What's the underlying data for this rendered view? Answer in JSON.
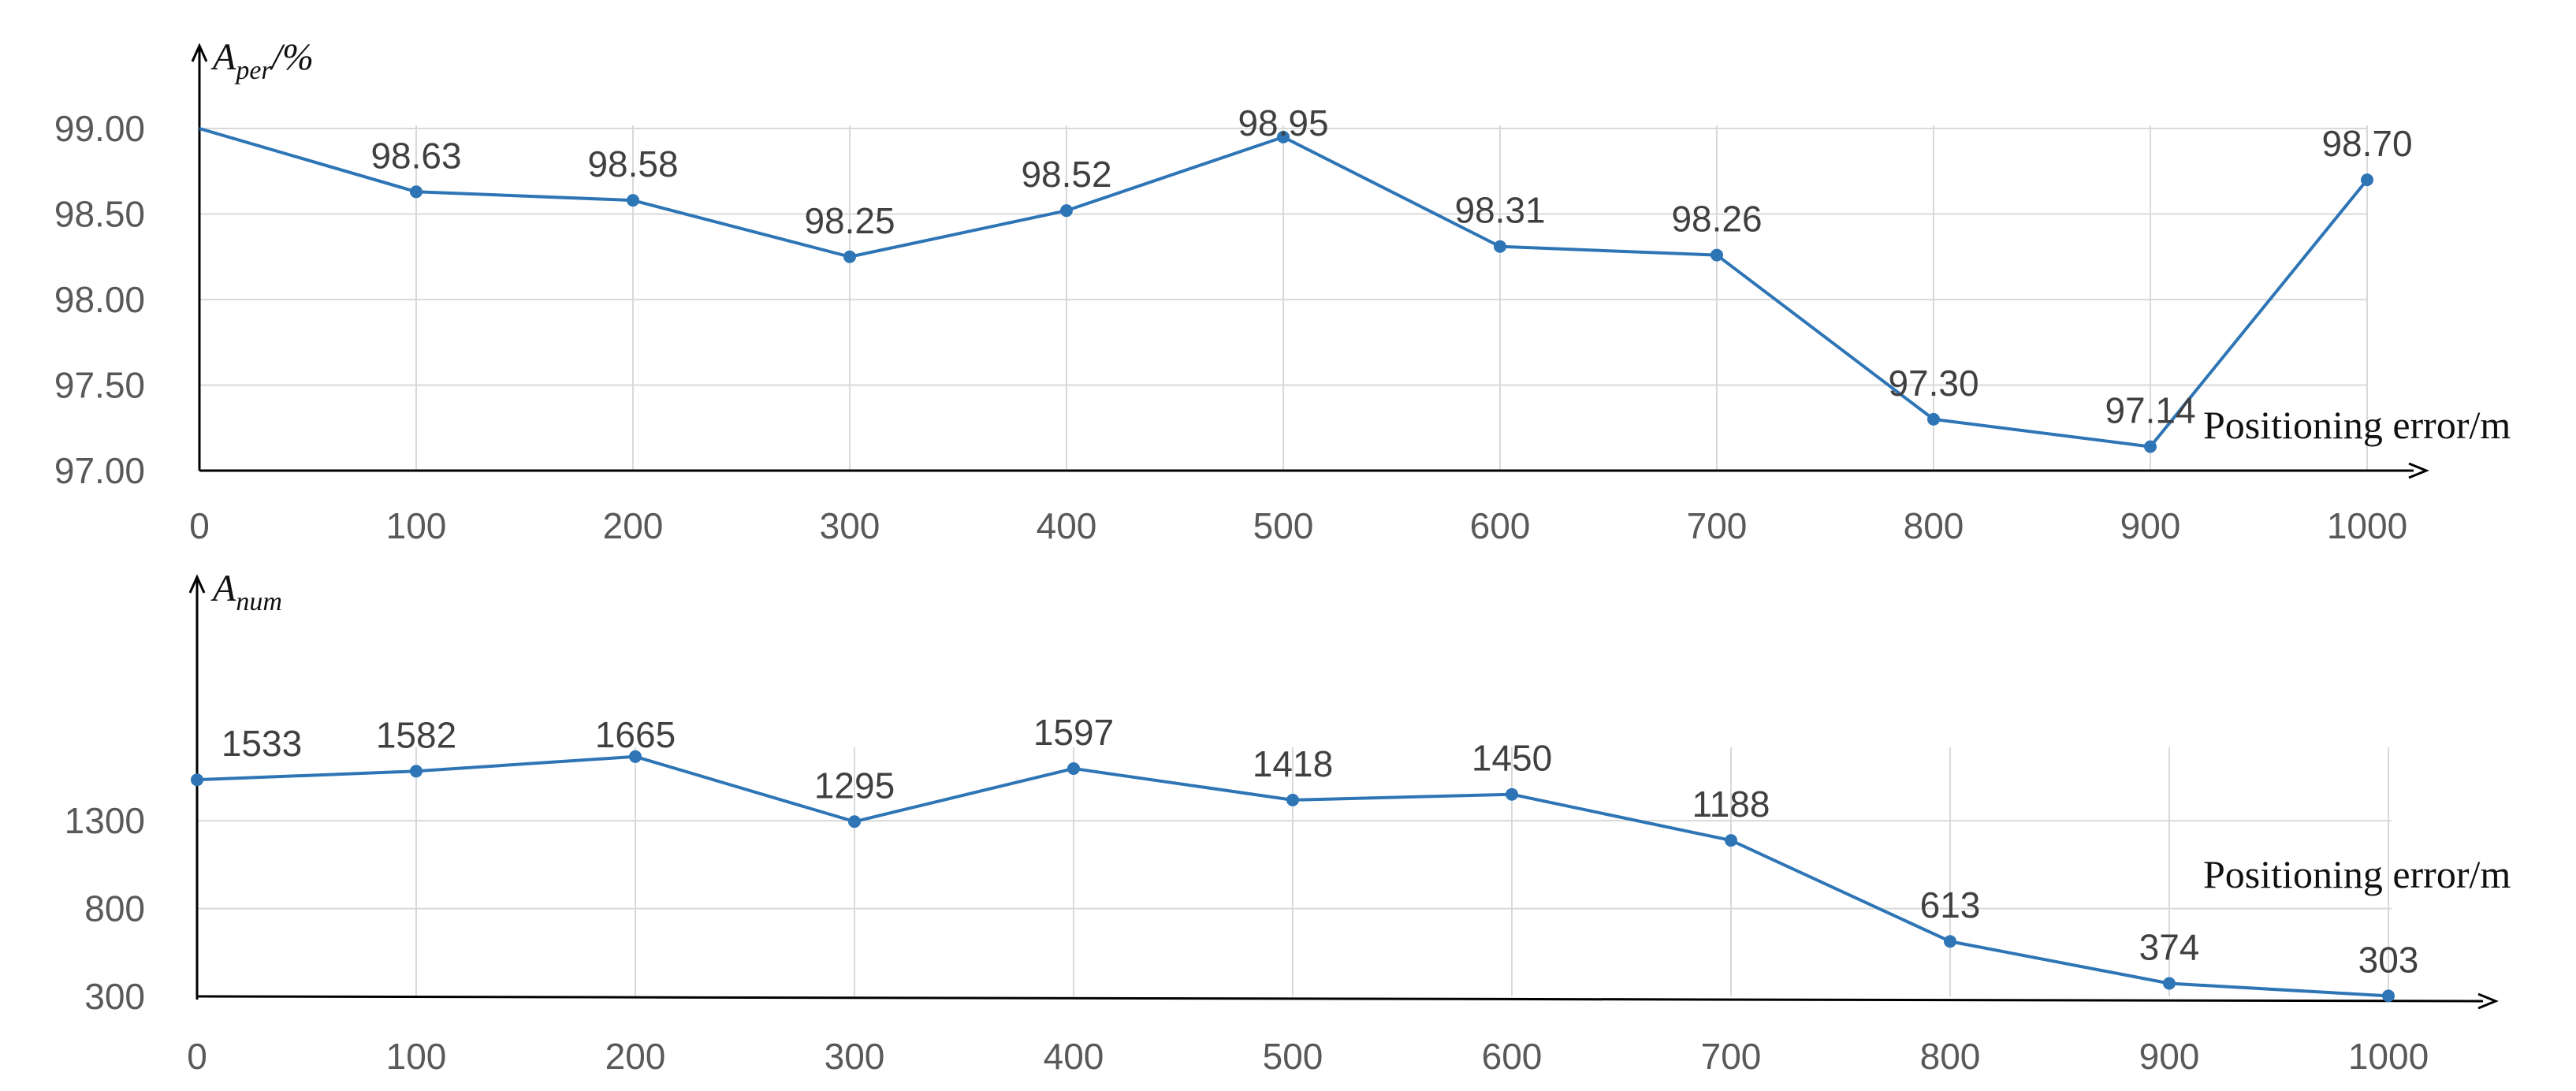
{
  "colors": {
    "series": "#2E75B6",
    "grid": "#D9D9D9",
    "axis": "#000000",
    "tick_text": "#595959",
    "label_text": "#404040"
  },
  "chart_data": [
    {
      "type": "line",
      "ylabel": {
        "main": "A",
        "sub": "per",
        "suffix": "/%"
      },
      "xlabel": "Positioning error/m",
      "x": [
        0,
        100,
        200,
        300,
        400,
        500,
        600,
        700,
        800,
        900,
        1000
      ],
      "xtick_labels": [
        "0",
        "100",
        "200",
        "300",
        "400",
        "500",
        "600",
        "700",
        "800",
        "900",
        "1000"
      ],
      "ylim": [
        97.0,
        99.0
      ],
      "yticks": [
        97.0,
        97.5,
        98.0,
        98.5,
        99.0
      ],
      "ytick_labels": [
        "97.00",
        "97.50",
        "98.00",
        "98.50",
        "99.00"
      ],
      "grid": true,
      "series": [
        {
          "values": [
            99.0,
            98.63,
            98.58,
            98.25,
            98.52,
            98.95,
            98.31,
            98.26,
            97.3,
            97.14,
            98.7
          ],
          "data_labels": [
            "",
            "98.63",
            "98.58",
            "98.25",
            "98.52",
            "98.95",
            "98.31",
            "98.26",
            "97.30",
            "97.14",
            "98.70"
          ]
        }
      ]
    },
    {
      "type": "line",
      "ylabel": {
        "main": "A",
        "sub": "num",
        "suffix": ""
      },
      "xlabel": "Positioning error/m",
      "x": [
        0,
        100,
        200,
        300,
        400,
        500,
        600,
        700,
        800,
        900,
        1000
      ],
      "xtick_labels": [
        "0",
        "100",
        "200",
        "300",
        "400",
        "500",
        "600",
        "700",
        "800",
        "900",
        "1000"
      ],
      "ylim": [
        300,
        1700
      ],
      "yticks": [
        300,
        800,
        1300
      ],
      "ytick_labels": [
        "300",
        "800",
        "1300"
      ],
      "grid": true,
      "series": [
        {
          "values": [
            1533,
            1582,
            1665,
            1295,
            1597,
            1418,
            1450,
            1188,
            613,
            374,
            303
          ],
          "data_labels": [
            "1533",
            "1582",
            "1665",
            "1295",
            "1597",
            "1418",
            "1450",
            "1188",
            "613",
            "374",
            "303"
          ]
        }
      ]
    }
  ]
}
